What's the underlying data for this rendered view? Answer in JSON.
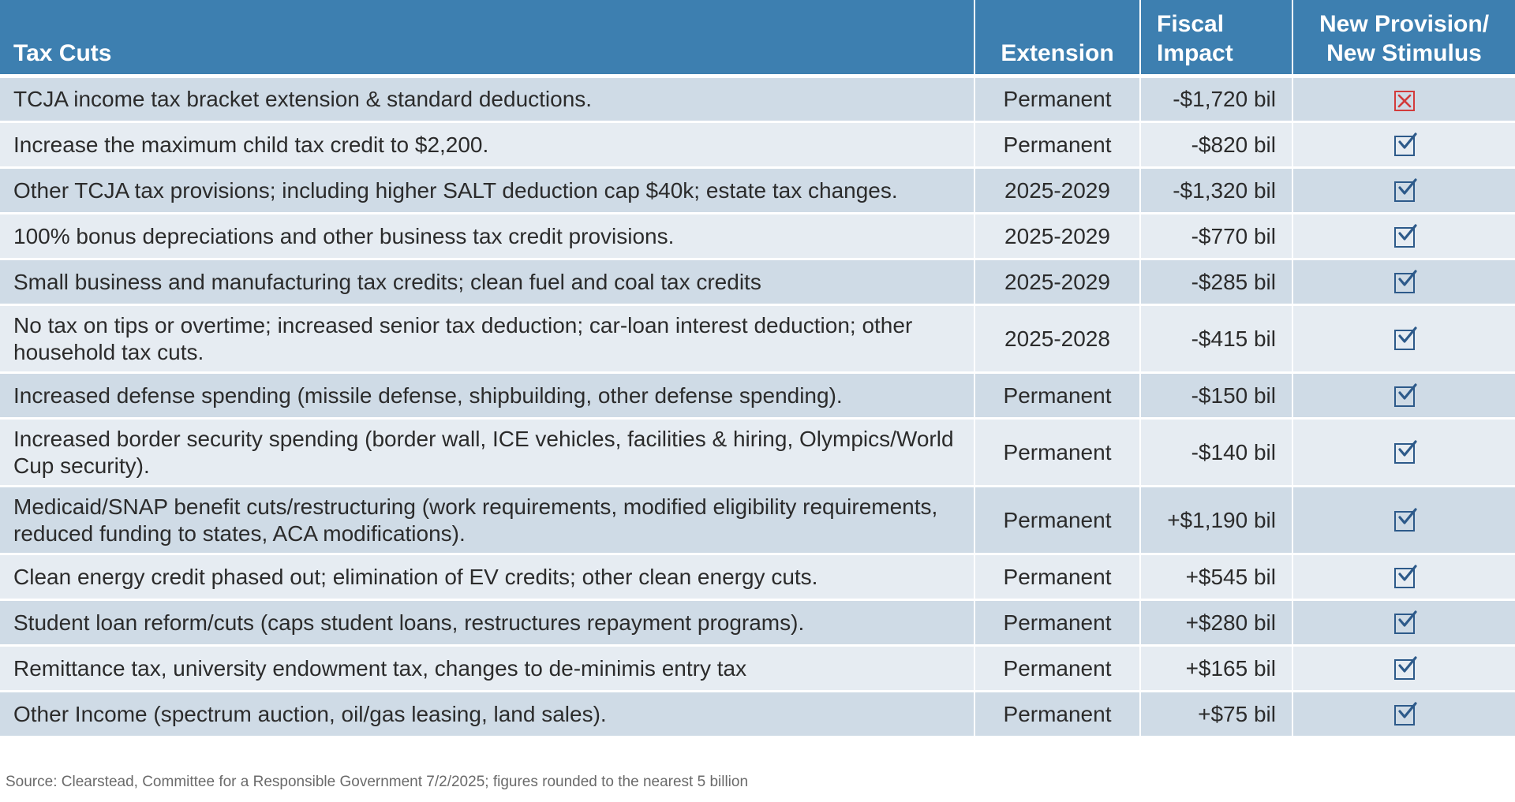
{
  "headers": {
    "tax_cuts": "Tax Cuts",
    "extension": "Extension",
    "fiscal_impact": "Fiscal Impact",
    "new_provision": "New Provision/ New Stimulus"
  },
  "rows": [
    {
      "desc": "TCJA income tax bracket extension & standard deductions.",
      "extension": "Permanent",
      "fiscal": "-$1,720 bil",
      "new": false
    },
    {
      "desc": "Increase the maximum child tax credit to $2,200.",
      "extension": "Permanent",
      "fiscal": "-$820 bil",
      "new": true
    },
    {
      "desc": "Other TCJA tax provisions; including higher SALT deduction cap $40k; estate tax changes.",
      "extension": "2025-2029",
      "fiscal": "-$1,320 bil",
      "new": true
    },
    {
      "desc": "100% bonus depreciations and other business tax credit provisions.",
      "extension": "2025-2029",
      "fiscal": "-$770 bil",
      "new": true
    },
    {
      "desc": "Small business and manufacturing tax credits; clean fuel and coal tax credits",
      "extension": "2025-2029",
      "fiscal": "-$285 bil",
      "new": true
    },
    {
      "desc": "No tax on tips or overtime; increased senior tax deduction; car-loan interest deduction; other household tax cuts.",
      "extension": "2025-2028",
      "fiscal": "-$415 bil",
      "new": true
    },
    {
      "desc": "Increased defense spending (missile defense, shipbuilding, other defense spending).",
      "extension": "Permanent",
      "fiscal": "-$150 bil",
      "new": true
    },
    {
      "desc": "Increased border security spending (border wall,  ICE vehicles, facilities & hiring, Olympics/World Cup security).",
      "extension": "Permanent",
      "fiscal": "-$140 bil",
      "new": true
    },
    {
      "desc": "Medicaid/SNAP benefit cuts/restructuring (work requirements, modified eligibility requirements, reduced funding to states, ACA modifications).",
      "extension": "Permanent",
      "fiscal": "+$1,190 bil",
      "new": true
    },
    {
      "desc": "Clean energy credit phased out; elimination of EV credits; other clean energy cuts.",
      "extension": "Permanent",
      "fiscal": "+$545 bil",
      "new": true
    },
    {
      "desc": "Student loan reform/cuts (caps student loans, restructures repayment programs).",
      "extension": "Permanent",
      "fiscal": "+$280 bil",
      "new": true
    },
    {
      "desc": "Remittance tax, university endowment tax, changes to de-minimis entry tax",
      "extension": "Permanent",
      "fiscal": "+$165 bil",
      "new": true
    },
    {
      "desc": "Other Income (spectrum auction, oil/gas leasing, land sales).",
      "extension": "Permanent",
      "fiscal": "+$75 bil",
      "new": true
    }
  ],
  "source": "Source: Clearstead, Committee for a Responsible Government 7/2/2025; figures rounded to the nearest 5 billion",
  "colors": {
    "header_bg": "#3d7fb0",
    "row_dark": "#cfdbe6",
    "row_light": "#e6ecf2",
    "check_color": "#2d5a8a",
    "x_color": "#d33b3b"
  },
  "icons": {
    "new_true": "checked-box-icon",
    "new_false": "x-box-icon"
  }
}
